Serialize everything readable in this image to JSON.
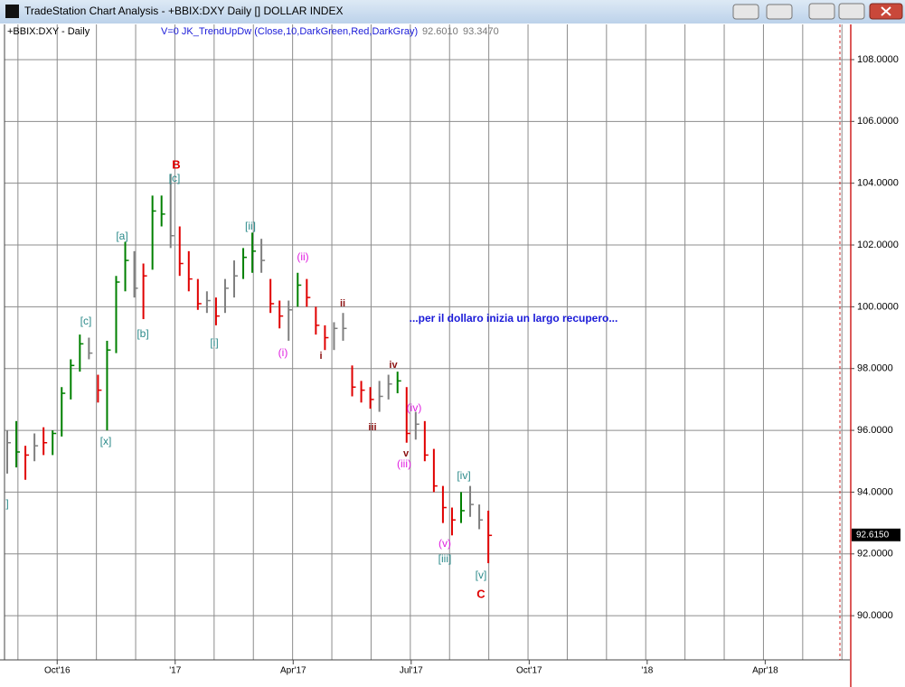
{
  "window": {
    "title": "TradeStation Chart Analysis - +BBIX:DXY Daily [] DOLLAR INDEX"
  },
  "chart_data": {
    "type": "hlc",
    "symbol_label": "+BBIX:DXY - Daily",
    "indicator": "V=0  JK_TrendUpDw  (Close,10,DarkGreen,Red,DarkGray)",
    "indicator_values": [
      "92.6010",
      "93.3470"
    ],
    "categories": [
      null,
      null,
      null,
      null,
      null,
      null,
      "Oct'16",
      null,
      null,
      null,
      null,
      null,
      null,
      null,
      null,
      null,
      null,
      null,
      null,
      "'17",
      null,
      null,
      null,
      null,
      null,
      null,
      null,
      null,
      null,
      null,
      null,
      null,
      "Apr'17",
      null,
      null,
      null,
      null,
      null,
      null,
      null,
      null,
      null,
      null,
      null,
      null,
      "Jul'17",
      null,
      null,
      null,
      null,
      null,
      null,
      null,
      null,
      null,
      null,
      null,
      null,
      "Oct'17",
      null,
      null,
      null,
      null,
      null,
      null,
      null,
      null,
      null,
      null,
      null,
      null,
      "'18",
      null,
      null,
      null,
      null,
      null,
      null,
      null,
      null,
      null,
      null,
      null,
      null,
      "Apr'18"
    ],
    "high": [
      96.0,
      96.3,
      95.5,
      95.9,
      96.1,
      96.0,
      97.4,
      98.3,
      99.1,
      99.0,
      97.8,
      98.9,
      101.0,
      102.1,
      101.8,
      101.4,
      103.6,
      103.6,
      104.3,
      102.6,
      101.8,
      100.9,
      100.5,
      100.3,
      100.9,
      101.5,
      101.9,
      102.4,
      102.2,
      100.9,
      100.2,
      100.2,
      101.1,
      100.9,
      100.0,
      99.4,
      99.5,
      99.8,
      98.1,
      97.6,
      97.4,
      97.6,
      97.8,
      97.9,
      97.4,
      96.6,
      96.3,
      95.4,
      94.2,
      93.5,
      94.0,
      94.2,
      93.6,
      93.4,
      null,
      null,
      null,
      null,
      null,
      null,
      null,
      null,
      null,
      null,
      null,
      null,
      null,
      null,
      null,
      null,
      null,
      null,
      null,
      null,
      null,
      null,
      null,
      null,
      null,
      null,
      null,
      null,
      null,
      null,
      null
    ],
    "low": [
      94.6,
      94.8,
      94.4,
      95.0,
      95.2,
      95.2,
      95.8,
      97.0,
      97.9,
      98.3,
      96.9,
      96.0,
      98.5,
      100.5,
      100.3,
      99.6,
      101.2,
      102.6,
      101.9,
      101.0,
      100.5,
      99.9,
      99.8,
      99.4,
      99.8,
      100.3,
      100.9,
      101.1,
      101.1,
      99.8,
      99.3,
      98.9,
      100.0,
      100.0,
      99.1,
      98.6,
      98.6,
      98.9,
      97.1,
      96.9,
      96.7,
      96.6,
      97.0,
      97.2,
      95.6,
      95.7,
      95.0,
      94.0,
      93.0,
      92.6,
      93.0,
      93.2,
      92.8,
      91.7,
      null,
      null,
      null,
      null,
      null,
      null,
      null,
      null,
      null,
      null,
      null,
      null,
      null,
      null,
      null,
      null,
      null,
      null,
      null,
      null,
      null,
      null,
      null,
      null,
      null,
      null,
      null,
      null,
      null,
      null,
      null
    ],
    "close": [
      95.6,
      95.3,
      95.2,
      95.5,
      95.6,
      95.9,
      97.2,
      98.1,
      98.8,
      98.5,
      97.3,
      98.6,
      100.8,
      101.5,
      100.6,
      101.0,
      103.1,
      103.0,
      102.3,
      101.4,
      100.9,
      100.1,
      100.2,
      99.7,
      100.6,
      101.0,
      101.6,
      101.8,
      101.5,
      100.1,
      99.7,
      99.9,
      100.7,
      100.3,
      99.4,
      99.0,
      99.3,
      99.3,
      97.4,
      97.3,
      97.0,
      97.1,
      97.5,
      97.6,
      95.9,
      96.2,
      95.2,
      94.2,
      93.5,
      93.1,
      93.4,
      93.6,
      93.1,
      92.6,
      null,
      null,
      null,
      null,
      null,
      null,
      null,
      null,
      null,
      null,
      null,
      null,
      null,
      null,
      null,
      null,
      null,
      null,
      null,
      null,
      null,
      null,
      null,
      null,
      null,
      null,
      null,
      null,
      null,
      null,
      null
    ],
    "bar_colors": [
      "#7f7f7f",
      "#008000",
      "#e00000",
      "#7f7f7f",
      "#e00000",
      "#008000",
      "#008000",
      "#008000",
      "#008000",
      "#7f7f7f",
      "#e00000",
      "#008000",
      "#008000",
      "#008000",
      "#7f7f7f",
      "#e00000",
      "#008000",
      "#008000",
      "#7f7f7f",
      "#e00000",
      "#e00000",
      "#e00000",
      "#7f7f7f",
      "#e00000",
      "#7f7f7f",
      "#7f7f7f",
      "#008000",
      "#008000",
      "#7f7f7f",
      "#e00000",
      "#e00000",
      "#7f7f7f",
      "#008000",
      "#e00000",
      "#e00000",
      "#e00000",
      "#7f7f7f",
      "#7f7f7f",
      "#e00000",
      "#e00000",
      "#e00000",
      "#7f7f7f",
      "#7f7f7f",
      "#008000",
      "#e00000",
      "#7f7f7f",
      "#e00000",
      "#e00000",
      "#e00000",
      "#e00000",
      "#008000",
      "#7f7f7f",
      "#7f7f7f",
      "#e00000",
      null,
      null,
      null,
      null,
      null,
      null,
      null,
      null,
      null,
      null,
      null,
      null,
      null,
      null,
      null,
      null,
      null,
      null,
      null,
      null,
      null,
      null,
      null,
      null,
      null,
      null,
      null,
      null,
      null,
      null,
      null
    ],
    "ylim": [
      88.57,
      109.14
    ],
    "yticks": [
      {
        "value": 90,
        "label": "90.0000"
      },
      {
        "value": 92,
        "label": "92.0000"
      },
      {
        "value": 94,
        "label": "94.0000"
      },
      {
        "value": 96,
        "label": "96.0000"
      },
      {
        "value": 98,
        "label": "98.0000"
      },
      {
        "value": 100,
        "label": "100.0000"
      },
      {
        "value": 102,
        "label": "102.0000"
      },
      {
        "value": 104,
        "label": "104.0000"
      },
      {
        "value": 106,
        "label": "106.0000"
      },
      {
        "value": 108,
        "label": "108.0000"
      }
    ],
    "last_price": {
      "value": 92.615,
      "label": "92.6150"
    },
    "grid": true,
    "note": {
      "text": "...per il dollaro inizia un largo recupero...",
      "color": "#1a1ad8"
    },
    "annotations": [
      {
        "text": "B",
        "color": "#e00000"
      },
      {
        "text": "[c]",
        "color": "#2b8a8a"
      },
      {
        "text": "[a]",
        "color": "#2b8a8a"
      },
      {
        "text": "[b]",
        "color": "#2b8a8a"
      },
      {
        "text": "[c]",
        "color": "#2b8a8a"
      },
      {
        "text": "[x]",
        "color": "#2b8a8a"
      },
      {
        "text": "]",
        "color": "#2b8a8a"
      },
      {
        "text": "[ii]",
        "color": "#2b8a8a"
      },
      {
        "text": "[i]",
        "color": "#2b8a8a"
      },
      {
        "text": "(ii)",
        "color": "#e01ee0"
      },
      {
        "text": "(i)",
        "color": "#e01ee0"
      },
      {
        "text": "ii",
        "color": "#8b1010"
      },
      {
        "text": "i",
        "color": "#8b1010"
      },
      {
        "text": "iv",
        "color": "#8b1010"
      },
      {
        "text": "iii",
        "color": "#8b1010"
      },
      {
        "text": "(iv)",
        "color": "#e01ee0"
      },
      {
        "text": "v",
        "color": "#8b1010"
      },
      {
        "text": "(iii)",
        "color": "#e01ee0"
      },
      {
        "text": "[iv]",
        "color": "#2b8a8a"
      },
      {
        "text": "(v)",
        "color": "#e01ee0"
      },
      {
        "text": "[iii]",
        "color": "#2b8a8a"
      },
      {
        "text": "[v]",
        "color": "#2b8a8a"
      },
      {
        "text": "C",
        "color": "#e00000"
      }
    ]
  }
}
